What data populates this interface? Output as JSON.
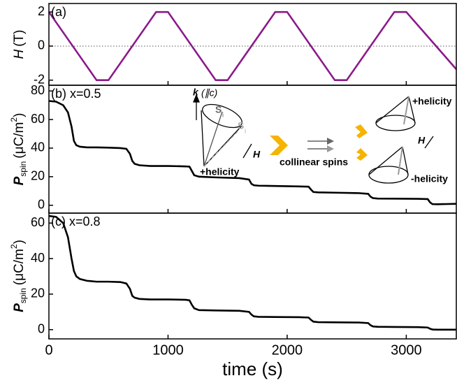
{
  "chart_data": [
    {
      "type": "line",
      "label": "(a)",
      "ylabel": {
        "symbol": "H",
        "unit": "(T)"
      },
      "x": [
        0,
        400,
        500,
        900,
        1000,
        1400,
        1500,
        1900,
        2000,
        2400,
        2500,
        2900,
        3000,
        3420
      ],
      "series": [
        {
          "color": "#8b1a8b",
          "values": [
            2,
            -2,
            -2,
            2,
            2,
            -2,
            -2,
            2,
            2,
            -2,
            -2,
            2,
            2,
            -1.36
          ]
        }
      ],
      "xlim": [
        0,
        3420
      ],
      "xticks": [
        0,
        1000,
        2000,
        3000
      ],
      "ylim": [
        -2.3,
        2.5
      ],
      "yticks": [
        -2,
        0,
        2
      ],
      "zero_line": true
    },
    {
      "type": "line",
      "label": "(b) x=0.5",
      "ylabel": {
        "symbol": "P",
        "subscript": "spin",
        "unit": "(μC/m",
        "superscript": "2",
        "close": ")"
      },
      "x": [
        0,
        60,
        120,
        160,
        190,
        210,
        230,
        260,
        320,
        400,
        500,
        600,
        650,
        680,
        700,
        720,
        760,
        850,
        1000,
        1150,
        1180,
        1200,
        1220,
        1260,
        1400,
        1600,
        1680,
        1700,
        1720,
        1760,
        1900,
        2100,
        2180,
        2200,
        2220,
        2260,
        2400,
        2600,
        2680,
        2700,
        2720,
        2760,
        2900,
        3100,
        3180,
        3200,
        3220,
        3260,
        3420
      ],
      "series": [
        {
          "color": "#000000",
          "values": [
            73,
            72.5,
            70,
            65,
            55,
            45,
            42,
            41,
            40.5,
            40.5,
            40.3,
            40,
            39.5,
            36,
            31,
            29,
            28,
            27.5,
            27.5,
            27.2,
            27,
            24,
            21,
            20,
            19.5,
            19,
            18,
            15,
            14,
            13.7,
            13.5,
            13.2,
            13,
            11,
            9.3,
            9,
            8.8,
            8.5,
            8,
            6,
            5,
            4.7,
            4.6,
            4.5,
            4.3,
            2,
            0.8,
            0.7,
            1
          ]
        }
      ],
      "xlim": [
        0,
        3420
      ],
      "xticks": [
        0,
        1000,
        2000,
        3000
      ],
      "ylim": [
        -5.5,
        84
      ],
      "yticks": [
        0,
        20,
        40,
        60,
        80
      ],
      "annotations": [
        "k",
        "(∥c)",
        "S",
        "i",
        "S",
        "i",
        "H",
        "+helicity",
        "collinear spins",
        "+helicity",
        "H",
        "-helicity"
      ]
    },
    {
      "type": "line",
      "label": "(c) x=0.8",
      "ylabel": {
        "symbol": "P",
        "subscript": "spin",
        "unit": "(μC/m",
        "superscript": "2",
        "close": ")"
      },
      "xlabel": "time (s)",
      "x": [
        0,
        60,
        120,
        160,
        190,
        210,
        230,
        260,
        320,
        400,
        500,
        600,
        650,
        680,
        700,
        720,
        760,
        850,
        1000,
        1150,
        1180,
        1200,
        1220,
        1260,
        1400,
        1600,
        1680,
        1700,
        1720,
        1760,
        1900,
        2100,
        2180,
        2200,
        2220,
        2260,
        2400,
        2600,
        2680,
        2700,
        2720,
        2760,
        2900,
        3100,
        3180,
        3200,
        3220,
        3260,
        3420
      ],
      "series": [
        {
          "color": "#000000",
          "values": [
            64,
            63.5,
            60,
            52,
            40,
            33,
            30,
            28.5,
            27.5,
            27,
            27,
            26.8,
            26,
            23,
            19,
            18,
            17.3,
            17,
            17,
            16.8,
            16.5,
            14,
            12,
            11,
            10.8,
            10.6,
            10,
            8.5,
            7.5,
            7.2,
            7.1,
            7,
            6.8,
            5.5,
            4.5,
            4.2,
            4.1,
            4,
            3.7,
            2.5,
            1.8,
            1.6,
            1.5,
            1.4,
            1.2,
            0.5,
            0.1,
            0,
            0
          ]
        }
      ],
      "xlim": [
        0,
        3420
      ],
      "xticks": [
        0,
        1000,
        2000,
        3000
      ],
      "ylim": [
        -5.2,
        65.6
      ],
      "yticks": [
        0,
        20,
        40,
        60
      ]
    }
  ]
}
